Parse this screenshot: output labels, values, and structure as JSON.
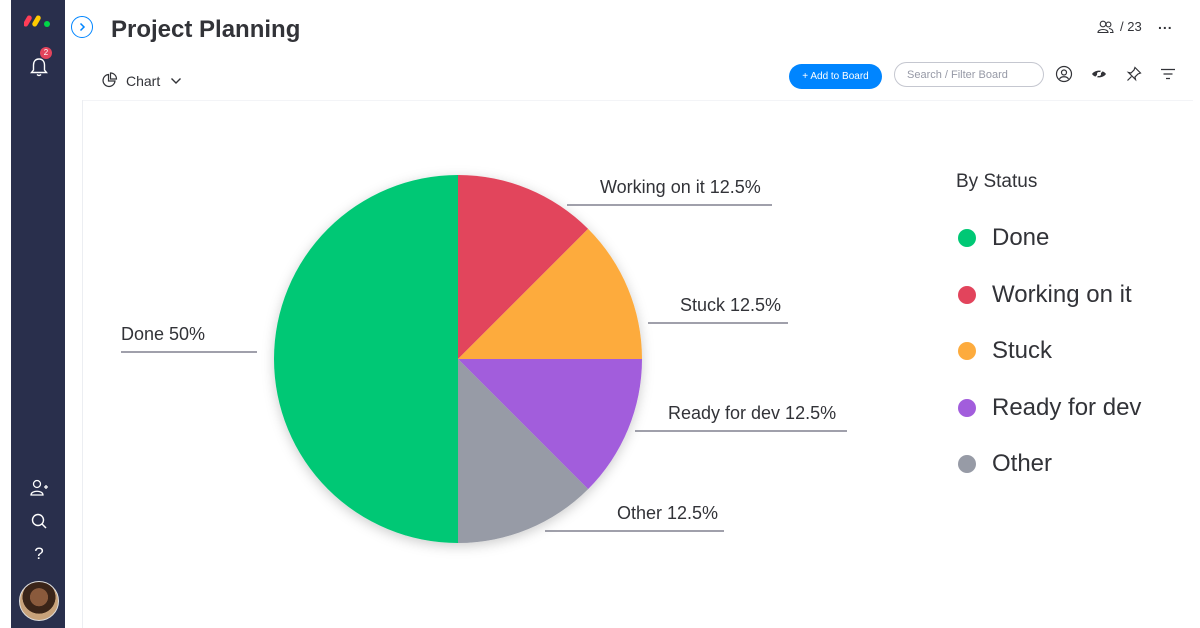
{
  "header": {
    "title": "Project Planning",
    "members_count": "/ 23",
    "more_label": "..."
  },
  "sidebar": {
    "notification_count": "2",
    "help_label": "?"
  },
  "toolbar": {
    "view_label": "Chart",
    "add_button_label": "+ Add to Board",
    "search_placeholder": "Search / Filter Board"
  },
  "legend": {
    "title": "By Status",
    "items": [
      {
        "label": "Done",
        "color": "#00c875"
      },
      {
        "label": "Working on it",
        "color": "#e2445c"
      },
      {
        "label": "Stuck",
        "color": "#fdab3d"
      },
      {
        "label": "Ready for dev",
        "color": "#a25ddc"
      },
      {
        "label": "Other",
        "color": "#979ba6"
      }
    ]
  },
  "chart_data": {
    "type": "pie",
    "categories": [
      "Done",
      "Working on it",
      "Stuck",
      "Ready for dev",
      "Other"
    ],
    "values": [
      50,
      12.5,
      12.5,
      12.5,
      12.5
    ],
    "labels": [
      "Done 50%",
      "Working on it 12.5%",
      "Stuck 12.5%",
      "Ready for dev 12.5%",
      "Other 12.5%"
    ],
    "colors": [
      "#00c875",
      "#e2445c",
      "#fdab3d",
      "#a25ddc",
      "#979ba6"
    ],
    "title": "By Status",
    "legend_position": "right"
  }
}
